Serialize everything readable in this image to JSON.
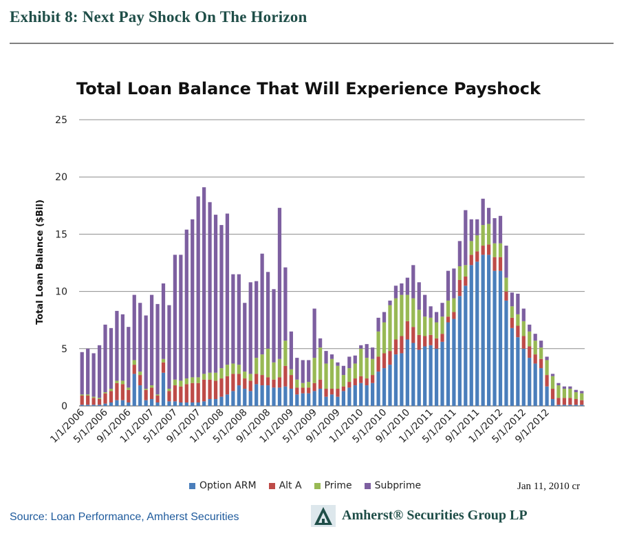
{
  "header": {
    "exhibit_title": "Exhibit 8:  Next Pay Shock On The Horizon"
  },
  "footer": {
    "source": "Source:  Loan Performance, Amherst Securities",
    "company": "Amherst® Securities Group LP",
    "stamp": "Jan 11, 2010 cr"
  },
  "chart_data": {
    "type": "bar",
    "stacked": true,
    "title": "Total Loan Balance That Will Experience Payshock",
    "xlabel": "",
    "ylabel": "Total Loan Balance  ($Bil)",
    "ylim": [
      0,
      25
    ],
    "yticks": [
      0,
      5,
      10,
      15,
      20,
      25
    ],
    "grid": true,
    "legend": "bottom",
    "xtick_labels": [
      "1/1/2006",
      "5/1/2006",
      "9/1/2006",
      "1/1/2007",
      "5/1/2007",
      "9/1/2007",
      "1/1/2008",
      "5/1/2008",
      "9/1/2008",
      "1/1/2009",
      "5/1/2009",
      "9/1/2009",
      "1/1/2010",
      "5/1/2010",
      "9/1/2010",
      "1/1/2011",
      "5/1/2011",
      "9/1/2011",
      "1/1/2012",
      "5/1/2012",
      "9/1/2012"
    ],
    "colors": {
      "option_arm": "#4a7ebb",
      "alt_a": "#be4b48",
      "prime": "#98b954",
      "subprime": "#7d5fa0"
    },
    "series": [
      {
        "name": "Option ARM",
        "values": [
          0.1,
          0.1,
          0.1,
          0.1,
          0.2,
          0.3,
          0.5,
          0.5,
          0.3,
          2.8,
          1.8,
          0.5,
          0.6,
          0.3,
          2.9,
          0.4,
          0.4,
          0.3,
          0.3,
          0.3,
          0.3,
          0.4,
          0.6,
          0.6,
          0.8,
          1.0,
          1.3,
          1.8,
          1.5,
          1.3,
          1.9,
          1.8,
          1.8,
          1.6,
          1.6,
          1.7,
          1.5,
          1.0,
          1.1,
          1.1,
          1.3,
          1.5,
          0.8,
          1.0,
          0.8,
          1.3,
          1.6,
          1.8,
          2.0,
          1.8,
          2.0,
          3.0,
          3.3,
          3.6,
          4.5,
          4.6,
          5.8,
          5.5,
          4.9,
          5.2,
          5.3,
          5.0,
          5.6,
          7.3,
          7.6,
          9.6,
          10.5,
          12.3,
          12.6,
          13.2,
          13.2,
          11.8,
          11.8,
          9.2,
          6.8,
          6.0,
          5.0,
          4.2,
          3.7,
          3.3,
          1.7,
          0.6,
          0.1,
          0.1,
          0.1,
          0.1,
          0.1
        ]
      },
      {
        "name": "Alt A",
        "values": [
          0.8,
          0.8,
          0.6,
          0.5,
          0.9,
          1.0,
          1.5,
          1.4,
          1.1,
          0.8,
          0.9,
          0.9,
          1.0,
          0.6,
          0.9,
          0.9,
          1.4,
          1.4,
          1.6,
          1.7,
          1.7,
          1.9,
          1.7,
          1.6,
          1.6,
          1.6,
          1.5,
          1.0,
          0.9,
          0.9,
          0.9,
          0.9,
          0.7,
          0.7,
          0.9,
          1.8,
          1.2,
          0.6,
          0.5,
          0.5,
          0.7,
          0.8,
          0.7,
          0.5,
          0.7,
          0.4,
          0.5,
          0.6,
          0.6,
          0.6,
          0.7,
          1.3,
          1.3,
          1.2,
          1.3,
          1.5,
          1.6,
          1.4,
          1.3,
          0.9,
          0.9,
          0.9,
          0.7,
          0.5,
          0.6,
          1.4,
          0.8,
          0.9,
          0.9,
          0.8,
          0.9,
          1.2,
          1.2,
          0.8,
          0.9,
          1.0,
          1.1,
          1.0,
          0.8,
          0.8,
          1.0,
          0.9,
          0.6,
          0.6,
          0.6,
          0.5,
          0.4
        ]
      },
      {
        "name": "Prime",
        "values": [
          0.1,
          0.1,
          0.1,
          0.1,
          0.1,
          0.2,
          0.2,
          0.3,
          0.2,
          0.4,
          0.3,
          0.1,
          0.2,
          0.1,
          0.3,
          0.2,
          0.5,
          0.5,
          0.5,
          0.5,
          0.5,
          0.5,
          0.6,
          0.7,
          0.9,
          1.0,
          0.9,
          0.8,
          0.6,
          0.6,
          1.4,
          1.8,
          2.5,
          1.5,
          1.6,
          2.2,
          0.5,
          0.7,
          0.4,
          0.5,
          2.2,
          2.8,
          2.2,
          2.6,
          2.0,
          1.0,
          1.2,
          1.3,
          2.4,
          1.8,
          1.4,
          2.2,
          2.7,
          4.0,
          3.6,
          3.6,
          2.3,
          2.5,
          2.2,
          1.7,
          1.5,
          1.4,
          1.5,
          1.4,
          1.2,
          1.2,
          1.0,
          1.2,
          1.4,
          1.8,
          1.8,
          1.2,
          1.2,
          1.2,
          1.0,
          1.0,
          1.3,
          1.3,
          1.2,
          1.0,
          1.3,
          1.1,
          1.1,
          0.8,
          0.8,
          0.6,
          0.6
        ]
      },
      {
        "name": "Subprime",
        "values": [
          3.7,
          4.0,
          3.8,
          4.6,
          5.9,
          5.3,
          6.1,
          5.8,
          5.3,
          5.7,
          6.0,
          6.4,
          7.9,
          7.9,
          6.6,
          7.3,
          10.9,
          11.0,
          13.0,
          13.8,
          15.8,
          16.3,
          14.9,
          13.8,
          12.5,
          13.2,
          7.8,
          7.9,
          6.0,
          8.0,
          6.7,
          8.8,
          6.7,
          6.4,
          13.2,
          6.4,
          3.3,
          1.9,
          2.0,
          1.9,
          4.3,
          0.8,
          1.1,
          0.4,
          0.3,
          0.8,
          1.0,
          0.7,
          0.3,
          1.2,
          1.0,
          1.2,
          0.9,
          0.4,
          1.1,
          1.0,
          1.5,
          2.9,
          2.4,
          1.9,
          1.0,
          0.9,
          1.2,
          2.6,
          2.6,
          2.2,
          4.8,
          1.9,
          1.4,
          2.3,
          1.4,
          2.2,
          2.4,
          2.8,
          1.2,
          1.8,
          1.1,
          0.6,
          0.6,
          0.6,
          0.3,
          0.2,
          0.2,
          0.2,
          0.2,
          0.2,
          0.2
        ]
      }
    ]
  }
}
